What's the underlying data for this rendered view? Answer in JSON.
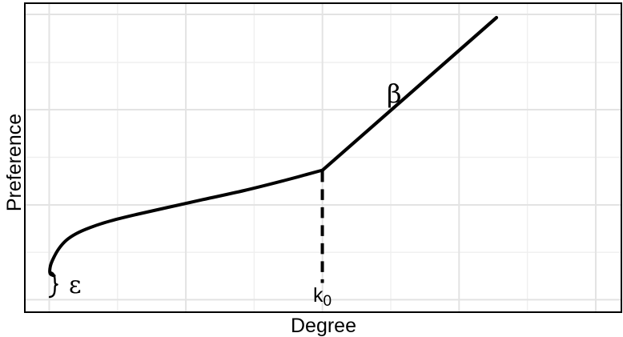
{
  "figure": {
    "xlabel": "Degree",
    "ylabel": "Preference",
    "annotations": {
      "epsilon": "ε",
      "beta": "β",
      "k0_main": "k",
      "k0_sub": "0"
    }
  },
  "colors": {
    "curve": "#000000",
    "dashed_guide": "#000000",
    "brace": "#000000",
    "grid_major": "#e3e3e3",
    "grid_minor": "#efefef",
    "panel_border": "#000000",
    "background": "#ffffff",
    "text": "#000000"
  },
  "chart_data": {
    "type": "line",
    "title": "",
    "xlabel": "Degree",
    "ylabel": "Preference",
    "x_tick_labels": [],
    "y_tick_labels": [],
    "axis_note": "No numeric tick labels are shown; coordinates below are normalized fractions of the plot panel (x: 0=left, 1=right; y: 0=bottom, 1=top), estimated from gridlines.",
    "description": "Schematic of a preferential-attachment preference function: preference rises steeply from an offset ε at minimum degree, follows a concave (log-like) curve up to a breakpoint degree k0, then increases along a steeper straight segment whose slope is labeled β. A dashed vertical guide marks k0; a curly brace marks the offset ε above the baseline gridline.",
    "series": [
      {
        "name": "concave preference curve (degree < k0)",
        "style": "solid",
        "points": [
          [
            0.049,
            0.1176
          ],
          [
            0.0423,
            0.1253
          ],
          [
            0.043,
            0.1499
          ],
          [
            0.0483,
            0.1757
          ],
          [
            0.0577,
            0.2067
          ],
          [
            0.0698,
            0.2326
          ],
          [
            0.0859,
            0.2532
          ],
          [
            0.1087,
            0.2726
          ],
          [
            0.1436,
            0.2946
          ],
          [
            0.1866,
            0.3152
          ],
          [
            0.2403,
            0.3385
          ],
          [
            0.3007,
            0.3643
          ],
          [
            0.3678,
            0.3928
          ],
          [
            0.4349,
            0.4251
          ],
          [
            0.4993,
            0.4587
          ]
        ]
      },
      {
        "name": "steep linear segment of slope β (degree > k0)",
        "style": "solid",
        "points": [
          [
            0.4993,
            0.4587
          ],
          [
            0.7906,
            0.9509
          ]
        ]
      }
    ],
    "guides": {
      "k0_dashed_vertical": {
        "x": 0.4987,
        "y_from": 0.0943,
        "y_to": 0.455
      },
      "epsilon_brace": {
        "x": 0.0417,
        "y_from": 0.0491,
        "y_to": 0.1292
      }
    },
    "annotations": [
      {
        "text": "ε",
        "meaning": "initial preference offset",
        "x": 0.08,
        "y": 0.075
      },
      {
        "text": "k0",
        "meaning": "breakpoint degree",
        "x": 0.498,
        "y": 0.045
      },
      {
        "text": "β",
        "meaning": "slope of upper segment",
        "x": 0.615,
        "y": 0.695
      }
    ],
    "grid": {
      "x_major": [
        0.0409,
        0.2699,
        0.4989,
        0.7279,
        0.957
      ],
      "x_minor": [
        0.1554,
        0.3844,
        0.6134,
        0.8424
      ],
      "y_major": [
        0.0403,
        0.3463,
        0.6537,
        0.9612
      ],
      "y_minor": [
        0.1934,
        0.5,
        0.8062
      ]
    },
    "legend": "none",
    "grid_on": true
  }
}
